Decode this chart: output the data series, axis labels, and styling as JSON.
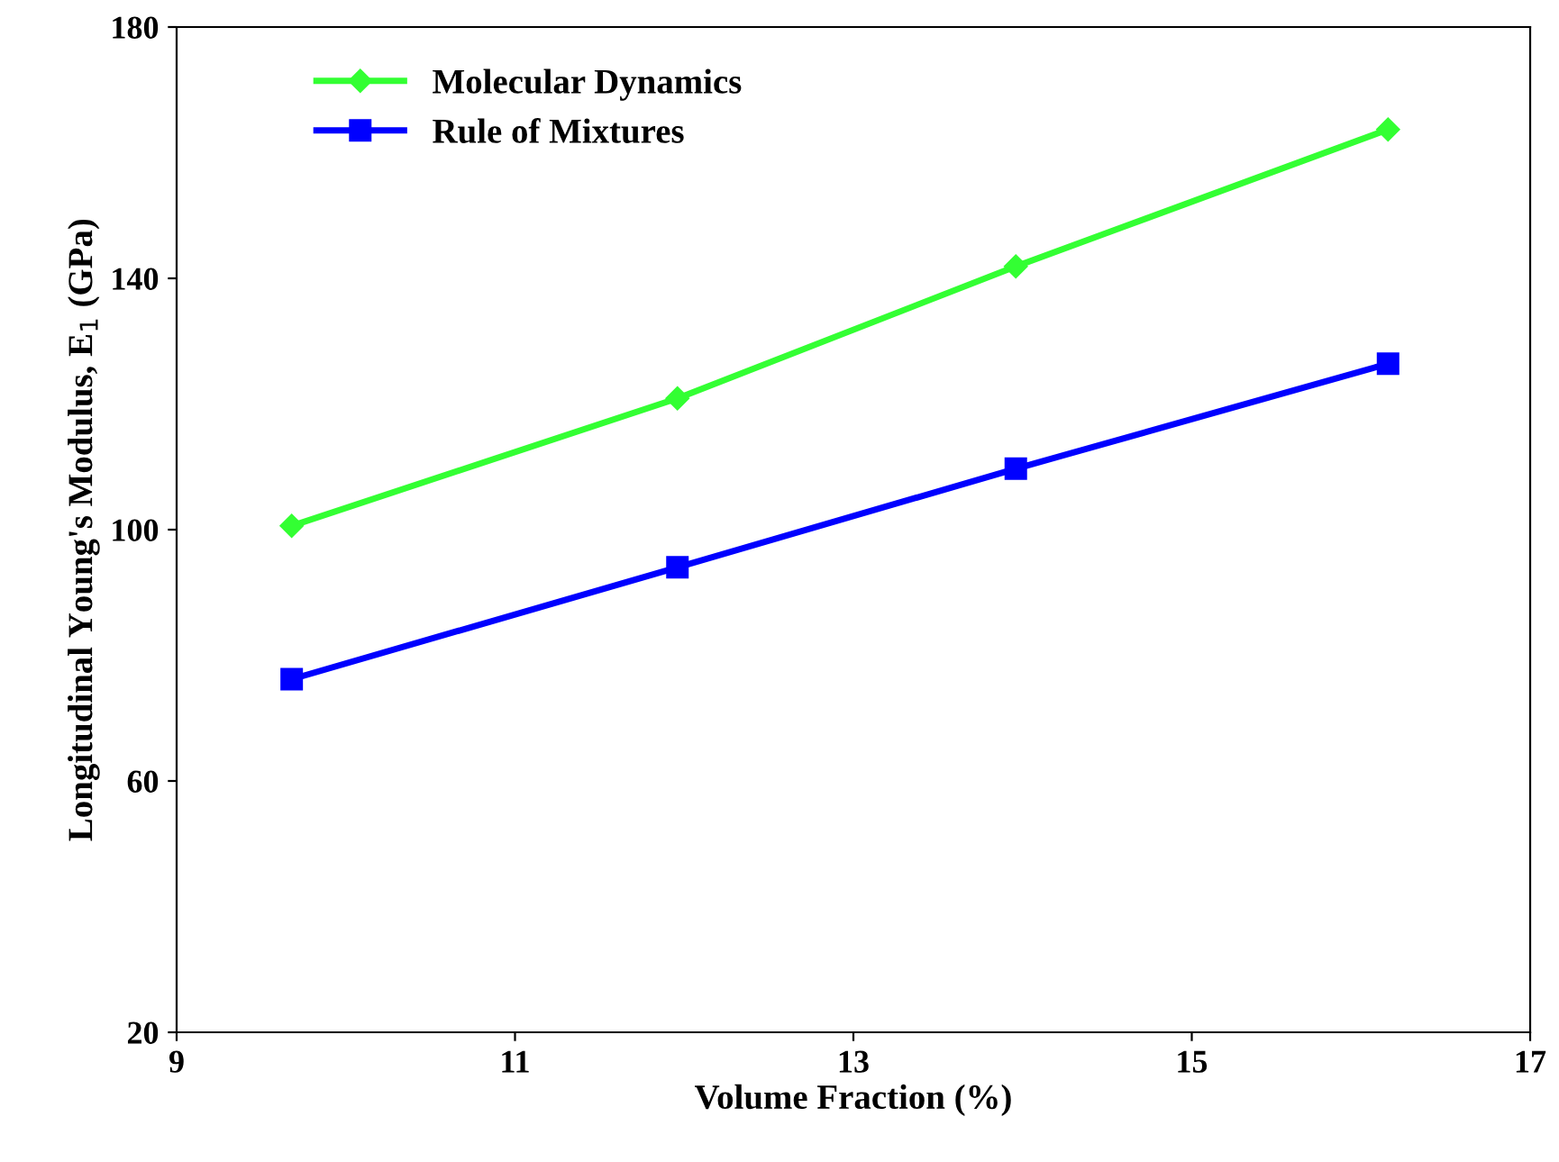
{
  "chart_data": {
    "type": "line",
    "xlabel": "Volume Fraction (%)",
    "ylabel": "Longitudinal Young's Modulus, E$_{1}$ (GPa)",
    "x": [
      9.68,
      11.96,
      13.96,
      16.16
    ],
    "series": [
      {
        "name": "Molecular Dynamics",
        "color": "#33ff33",
        "marker": "diamond",
        "values": [
          100.6,
          120.9,
          141.9,
          163.7
        ]
      },
      {
        "name": "Rule of Mixtures",
        "color": "#0000ff",
        "marker": "square",
        "values": [
          76.2,
          94.0,
          109.7,
          126.4
        ]
      }
    ],
    "xlim": [
      9,
      17
    ],
    "xticks": [
      9,
      11,
      13,
      15,
      17
    ],
    "ylim": [
      20,
      180
    ],
    "yticks": [
      20,
      60,
      100,
      140,
      180
    ],
    "grid": false,
    "legend": "top left",
    "line_style": "solid"
  }
}
